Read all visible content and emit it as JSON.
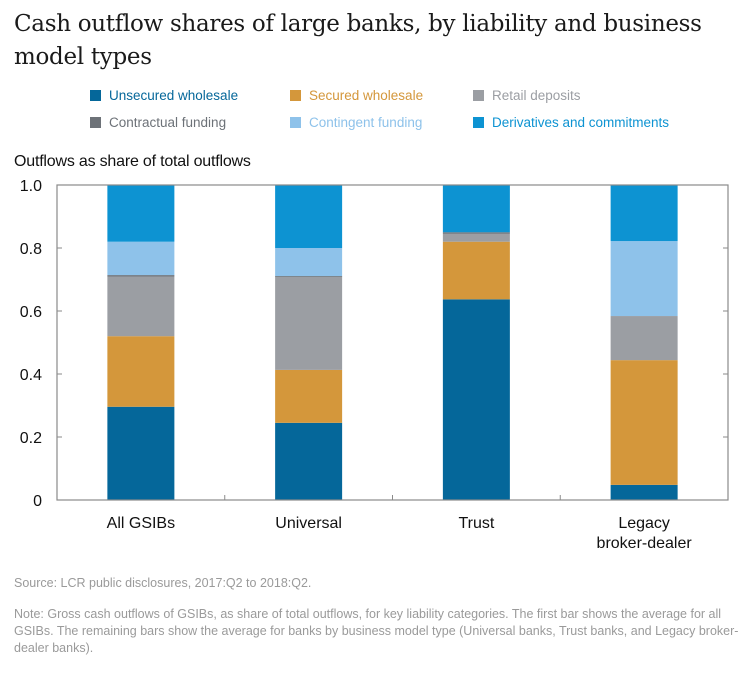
{
  "chart_data": {
    "type": "bar",
    "stacked": true,
    "title": "Cash outflow shares of large banks, by liability and business model types",
    "ylabel": "Outflows as share of total outflows",
    "xlabel": "",
    "ylim": [
      0,
      1.0
    ],
    "yticks": [
      "0",
      "0.2",
      "0.4",
      "0.6",
      "0.8",
      "1.0"
    ],
    "ytick_values": [
      0,
      0.2,
      0.4,
      0.6,
      0.8,
      1.0
    ],
    "categories": [
      {
        "lines": [
          "All GSIBs"
        ]
      },
      {
        "lines": [
          "Universal"
        ]
      },
      {
        "lines": [
          "Trust"
        ]
      },
      {
        "lines": [
          "Legacy",
          "broker-dealer"
        ]
      }
    ],
    "legend_position": "top",
    "series": [
      {
        "name": "Unsecured wholesale",
        "color": "#05679a",
        "values": [
          0.296,
          0.245,
          0.637,
          0.048
        ]
      },
      {
        "name": "Secured wholesale",
        "color": "#d4973b",
        "values": [
          0.224,
          0.168,
          0.183,
          0.396
        ]
      },
      {
        "name": "Retail deposits",
        "color": "#9b9ea3",
        "values": [
          0.189,
          0.296,
          0.025,
          0.14
        ]
      },
      {
        "name": "Contractual funding",
        "color": "#6d7278",
        "values": [
          0.005,
          0.002,
          0.005,
          0.0
        ]
      },
      {
        "name": "Contingent funding",
        "color": "#8ec2ea",
        "values": [
          0.106,
          0.089,
          0.0,
          0.238
        ]
      },
      {
        "name": "Derivatives and commitments",
        "color": "#0d93d2",
        "values": [
          0.18,
          0.2,
          0.15,
          0.178
        ]
      }
    ],
    "legend": [
      {
        "name": "Unsecured wholesale",
        "text_color": "#05679a"
      },
      {
        "name": "Secured wholesale",
        "text_color": "#d4973b"
      },
      {
        "name": "Retail deposits",
        "text_color": "#9b9ea3"
      },
      {
        "name": "Contractual funding",
        "text_color": "#6d7278"
      },
      {
        "name": "Contingent funding",
        "text_color": "#8ec2ea"
      },
      {
        "name": "Derivatives and commitments",
        "text_color": "#0d93d2"
      }
    ],
    "grid": false
  },
  "footer": {
    "source": "Source: LCR public disclosures, 2017:Q2 to 2018:Q2.",
    "note": "Note: Gross cash outflows of GSIBs, as share of total outflows, for key liability categories. The first bar shows the average for all GSIBs. The remaining bars show the average for banks by business model type (Universal banks, Trust banks, and Legacy broker-dealer banks)."
  }
}
